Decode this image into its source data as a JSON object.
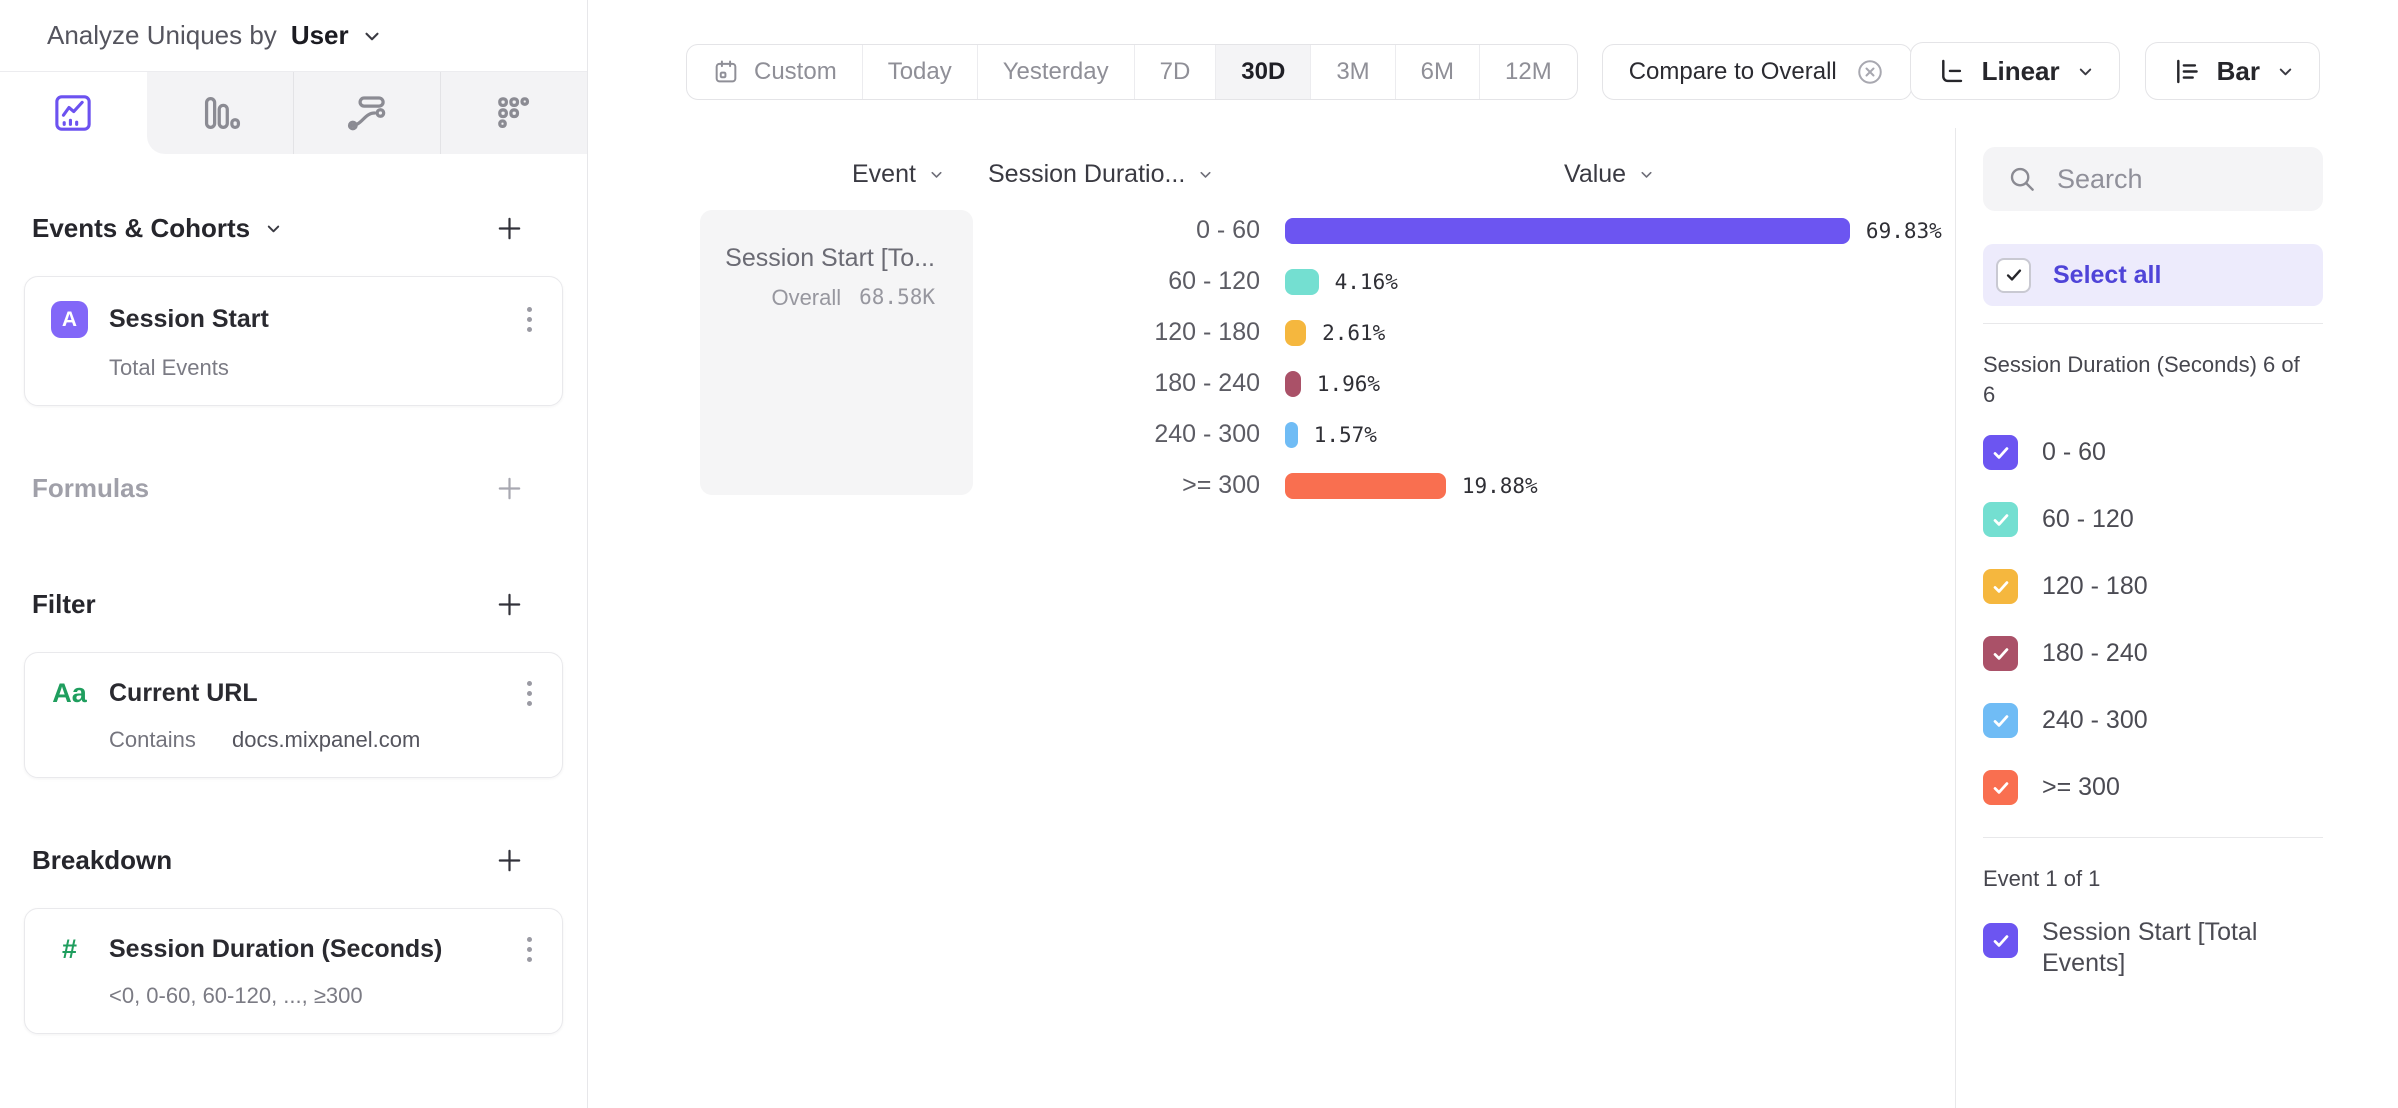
{
  "header": {
    "analyze_label": "Analyze Uniques by",
    "analyze_value": "User"
  },
  "sidebar": {
    "tabs": [
      "insights",
      "funnels",
      "flows",
      "retention"
    ],
    "active_tab": "insights",
    "events_section_title": "Events & Cohorts",
    "event_card": {
      "badge": "A",
      "title": "Session Start",
      "subtitle": "Total Events"
    },
    "formulas_label": "Formulas",
    "filter_section_title": "Filter",
    "filter_card": {
      "badge": "Aa",
      "title": "Current URL",
      "operator": "Contains",
      "value": "docs.mixpanel.com"
    },
    "breakdown_section_title": "Breakdown",
    "breakdown_card": {
      "badge": "#",
      "title": "Session Duration (Seconds)",
      "subtitle": "<0, 0-60, 60-120, ..., ≥300"
    }
  },
  "toolbar": {
    "date_ranges": [
      "Custom",
      "Today",
      "Yesterday",
      "7D",
      "30D",
      "3M",
      "6M",
      "12M"
    ],
    "active_range": "30D",
    "compare_label": "Compare to Overall",
    "linear_label": "Linear",
    "bar_label": "Bar"
  },
  "table": {
    "columns": {
      "event": "Event",
      "duration": "Session Duratio...",
      "value": "Value"
    },
    "event_cell": {
      "title": "Session Start [To...",
      "overall_label": "Overall",
      "overall_value": "68.58K"
    }
  },
  "chart_data": {
    "type": "bar",
    "orientation": "horizontal",
    "title": "",
    "categories": [
      "0 - 60",
      "60 - 120",
      "120 - 180",
      "180 - 240",
      "240 - 300",
      ">= 300"
    ],
    "values": [
      69.83,
      4.16,
      2.61,
      1.96,
      1.57,
      19.88
    ],
    "value_labels": [
      "69.83%",
      "4.16%",
      "2.61%",
      "1.96%",
      "1.57%",
      "19.88%"
    ],
    "unit": "%",
    "xlim": [
      0,
      70
    ],
    "grid": false,
    "colors": [
      "#6C55F1",
      "#74DFD1",
      "#F5B73E",
      "#AA5168",
      "#70BCF5",
      "#F96F50"
    ],
    "series": [
      {
        "name": "Session Start [Total Events]",
        "overall": "68.58K",
        "values": [
          69.83,
          4.16,
          2.61,
          1.96,
          1.57,
          19.88
        ]
      }
    ]
  },
  "right_panel": {
    "search_placeholder": "Search",
    "select_all_label": "Select all",
    "group1_label": "Session Duration (Seconds) 6 of 6",
    "items": [
      {
        "label": "0 - 60",
        "color": "#6C55F1",
        "checked": true
      },
      {
        "label": "60 - 120",
        "color": "#74DFD1",
        "checked": true
      },
      {
        "label": "120 - 180",
        "color": "#F5B73E",
        "checked": true
      },
      {
        "label": "180 - 240",
        "color": "#AA5168",
        "checked": true
      },
      {
        "label": "240 - 300",
        "color": "#70BCF5",
        "checked": true
      },
      {
        "label": ">= 300",
        "color": "#F96F50",
        "checked": true
      }
    ],
    "group2_label": "Event 1 of 1",
    "event_item": {
      "label": "Session Start [Total Events]",
      "color": "#6C55F1",
      "checked": true
    }
  },
  "colors": {
    "accent_purple": "#6C55F1",
    "select_all_text": "#4F44D8",
    "select_all_bg": "#EDEBFC",
    "panel_border": "#E7E7EA",
    "muted_bg": "#F4F4F6"
  }
}
